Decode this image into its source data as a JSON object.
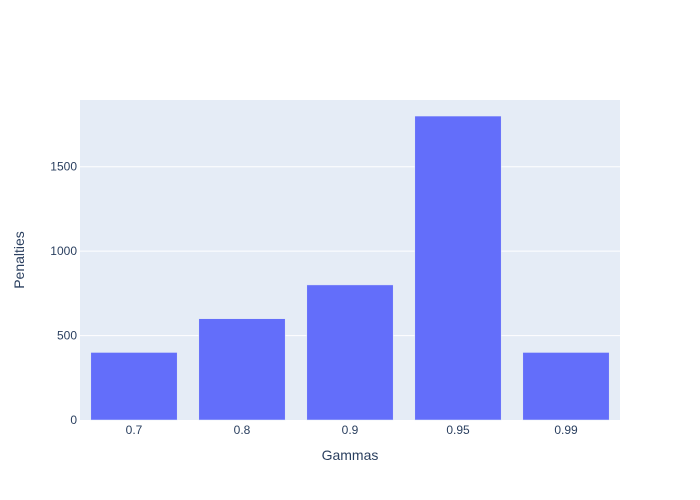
{
  "chart_data": {
    "type": "bar",
    "categories": [
      "0.7",
      "0.8",
      "0.9",
      "0.95",
      "0.99"
    ],
    "values": [
      400,
      600,
      800,
      1800,
      400
    ],
    "title": "",
    "xlabel": "Gammas",
    "ylabel": "Penalties",
    "ylim": [
      0,
      1895
    ],
    "yticks": [
      0,
      500,
      1000,
      1500
    ],
    "grid": true,
    "legend": "none"
  },
  "colors": {
    "bar": "#636efa",
    "plot_background": "#e5ecf6",
    "grid": "#ffffff",
    "text": "#2a3f5f"
  }
}
